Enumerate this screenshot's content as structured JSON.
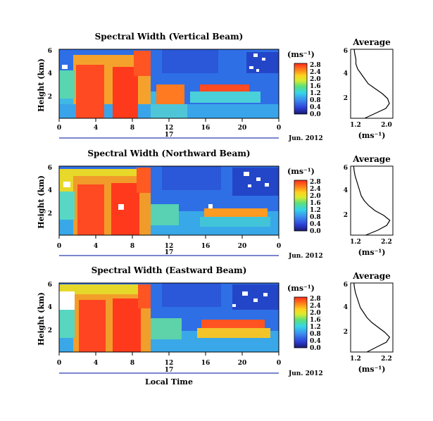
{
  "chart_data": [
    {
      "type": "heatmap",
      "title": "Spectral Width (Vertical Beam)",
      "ylabel": "Height (km)",
      "x_ticks": [
        "0",
        "4",
        "8",
        "12",
        "16",
        "20",
        "0"
      ],
      "y_ticks": [
        "6",
        "4",
        "2"
      ],
      "xlim": [
        0,
        24
      ],
      "ylim": [
        0.4,
        6
      ],
      "date_day": "17",
      "date_label": "Jun. 2012",
      "colorbar": {
        "unit": "(ms⁻¹)",
        "ticks": [
          "0.0",
          "0.4",
          "0.8",
          "1.2",
          "1.6",
          "2.0",
          "2.4",
          "2.8"
        ],
        "range": [
          0,
          3
        ]
      },
      "average_profile": {
        "title": "Average",
        "xlabel": "(ms⁻¹)",
        "x_ticks": [
          "1.2",
          "2.0"
        ],
        "y_ticks": [
          "6",
          "4",
          "2"
        ],
        "xlim": [
          1.0,
          2.2
        ],
        "ylim": [
          0.4,
          6
        ],
        "height_km": [
          0.4,
          0.8,
          1.2,
          1.6,
          2.0,
          2.4,
          2.8,
          3.2,
          3.6,
          4.0,
          4.4,
          4.8,
          5.2,
          5.6,
          6.0
        ],
        "width_ms": [
          1.4,
          1.7,
          2.0,
          2.1,
          2.05,
          1.9,
          1.7,
          1.5,
          1.4,
          1.3,
          1.2,
          1.15,
          1.15,
          1.12,
          1.1
        ]
      }
    },
    {
      "type": "heatmap",
      "title": "Spectral Width (Northward Beam)",
      "ylabel": "Height (km)",
      "x_ticks": [
        "0",
        "4",
        "8",
        "12",
        "16",
        "20",
        "0"
      ],
      "y_ticks": [
        "6",
        "4",
        "2"
      ],
      "xlim": [
        0,
        24
      ],
      "ylim": [
        0.4,
        6
      ],
      "date_day": "17",
      "date_label": "Jun. 2012",
      "colorbar": {
        "unit": "(ms⁻¹)",
        "ticks": [
          "0.0",
          "0.4",
          "0.8",
          "1.2",
          "1.6",
          "2.0",
          "2.4",
          "2.8"
        ],
        "range": [
          0,
          3
        ]
      },
      "average_profile": {
        "title": "Average",
        "xlabel": "(ms⁻¹)",
        "x_ticks": [
          "1.2",
          "2.2"
        ],
        "y_ticks": [
          "6",
          "4",
          "2"
        ],
        "xlim": [
          1.0,
          2.4
        ],
        "ylim": [
          0.4,
          6
        ],
        "height_km": [
          0.4,
          0.8,
          1.2,
          1.6,
          2.0,
          2.4,
          2.8,
          3.2,
          3.6,
          4.0,
          4.4,
          4.8,
          5.2,
          5.6,
          6.0
        ],
        "width_ms": [
          1.5,
          1.9,
          2.2,
          2.3,
          2.1,
          1.8,
          1.6,
          1.45,
          1.35,
          1.3,
          1.25,
          1.2,
          1.15,
          1.12,
          1.1
        ]
      }
    },
    {
      "type": "heatmap",
      "title": "Spectral Width (Eastward Beam)",
      "ylabel": "Height (km)",
      "xlabel": "Local Time",
      "x_ticks": [
        "0",
        "4",
        "8",
        "12",
        "16",
        "20",
        "0"
      ],
      "y_ticks": [
        "6",
        "4",
        "2"
      ],
      "xlim": [
        0,
        24
      ],
      "ylim": [
        0.4,
        6
      ],
      "date_day": "17",
      "date_label": "Jun. 2012",
      "colorbar": {
        "unit": "(ms⁻¹)",
        "ticks": [
          "0.0",
          "0.4",
          "0.8",
          "1.2",
          "1.6",
          "2.0",
          "2.4",
          "2.8"
        ],
        "range": [
          0,
          3
        ]
      },
      "average_profile": {
        "title": "Average",
        "xlabel": "(ms⁻¹)",
        "x_ticks": [
          "1.2",
          "2.2"
        ],
        "y_ticks": [
          "6",
          "4",
          "2"
        ],
        "xlim": [
          1.0,
          2.3
        ],
        "ylim": [
          0.4,
          6
        ],
        "height_km": [
          0.4,
          0.8,
          1.2,
          1.6,
          2.0,
          2.4,
          2.8,
          3.2,
          3.6,
          4.0,
          4.4,
          4.8,
          5.2,
          5.6,
          6.0
        ],
        "width_ms": [
          1.5,
          1.8,
          2.1,
          2.2,
          2.05,
          1.85,
          1.65,
          1.5,
          1.4,
          1.3,
          1.25,
          1.2,
          1.15,
          1.12,
          1.1
        ]
      }
    }
  ]
}
